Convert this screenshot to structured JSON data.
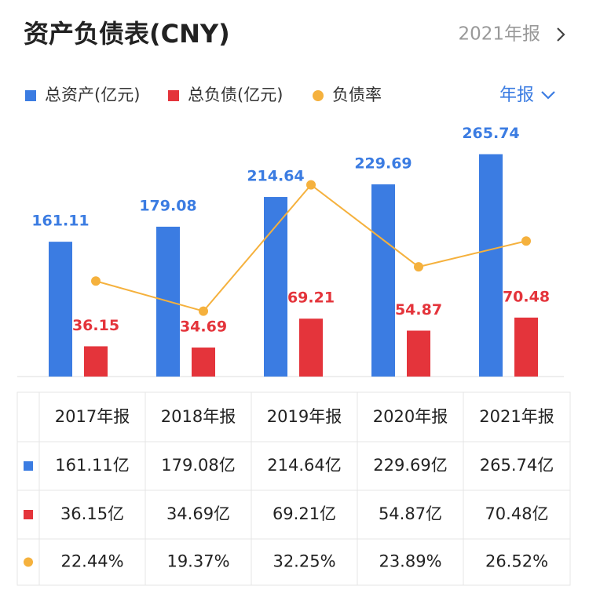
{
  "header": {
    "period": "2021年报"
  },
  "controls": {
    "period_type": "年报"
  },
  "chart_data": {
    "type": "bar",
    "title": "资产负债表(CNY)",
    "categories": [
      "2017年报",
      "2018年报",
      "2019年报",
      "2020年报",
      "2021年报"
    ],
    "series": [
      {
        "name": "总资产(亿元)",
        "type": "bar",
        "color": "#3b7ce2",
        "values": [
          161.11,
          179.08,
          214.64,
          229.69,
          265.74
        ],
        "value_labels": [
          "161.11亿",
          "179.08亿",
          "214.64亿",
          "229.69亿",
          "265.74亿"
        ]
      },
      {
        "name": "总负债(亿元)",
        "type": "bar",
        "color": "#e4343b",
        "values": [
          36.15,
          34.69,
          69.21,
          54.87,
          70.48
        ],
        "value_labels": [
          "36.15亿",
          "34.69亿",
          "69.21亿",
          "54.87亿",
          "70.48亿"
        ]
      },
      {
        "name": "负债率",
        "type": "line",
        "axis": "y2",
        "color": "#f5b13d",
        "values": [
          22.44,
          19.37,
          32.25,
          23.89,
          26.52
        ],
        "value_labels": [
          "22.44%",
          "19.37%",
          "32.25%",
          "23.89%",
          "26.52%"
        ]
      }
    ],
    "ylim": [
      0,
      300
    ],
    "y2lim": [
      12.7,
      38.3
    ]
  }
}
